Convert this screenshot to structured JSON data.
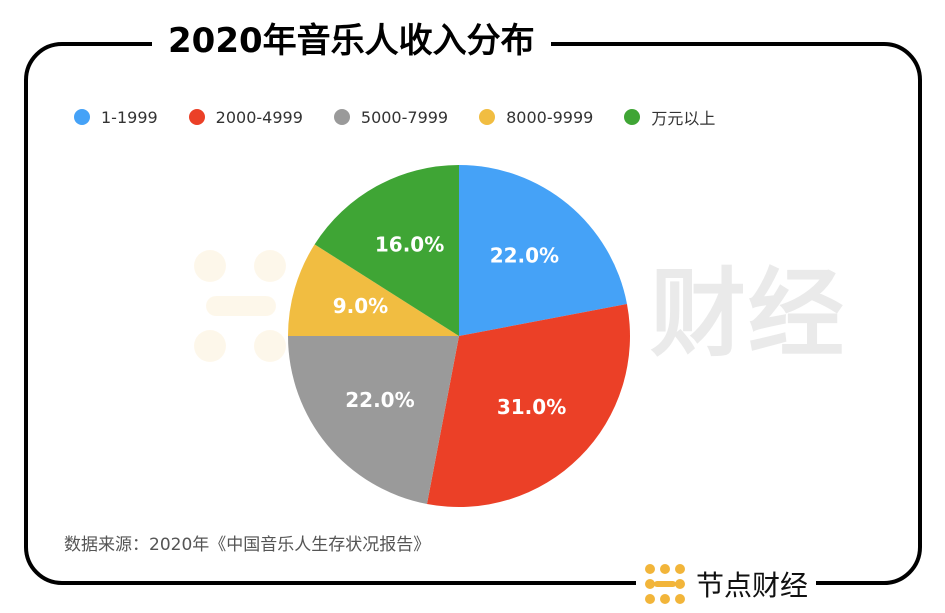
{
  "title": "2020年音乐人收入分布",
  "source": "数据来源：2020年《中国音乐人生存状况报告》",
  "brand": {
    "name": "节点财经",
    "watermark": "财经",
    "logo_icon": "dots-grid-logo-icon",
    "logo_color": "#F2B53A"
  },
  "chart_data": {
    "type": "pie",
    "categories": [
      "1-1999",
      "2000-4999",
      "5000-7999",
      "8000-9999",
      "万元以上"
    ],
    "values": [
      22.0,
      31.0,
      22.0,
      9.0,
      16.0
    ],
    "labels": [
      "22.0%",
      "31.0%",
      "22.0%",
      "9.0%",
      "16.0%"
    ],
    "colors": [
      "#45A2F7",
      "#EB4027",
      "#9A9A9A",
      "#F1BD41",
      "#3FA535"
    ],
    "start_angle_deg": 0,
    "direction": "clockwise",
    "legend_position": "top-left",
    "title": "2020年音乐人收入分布"
  }
}
